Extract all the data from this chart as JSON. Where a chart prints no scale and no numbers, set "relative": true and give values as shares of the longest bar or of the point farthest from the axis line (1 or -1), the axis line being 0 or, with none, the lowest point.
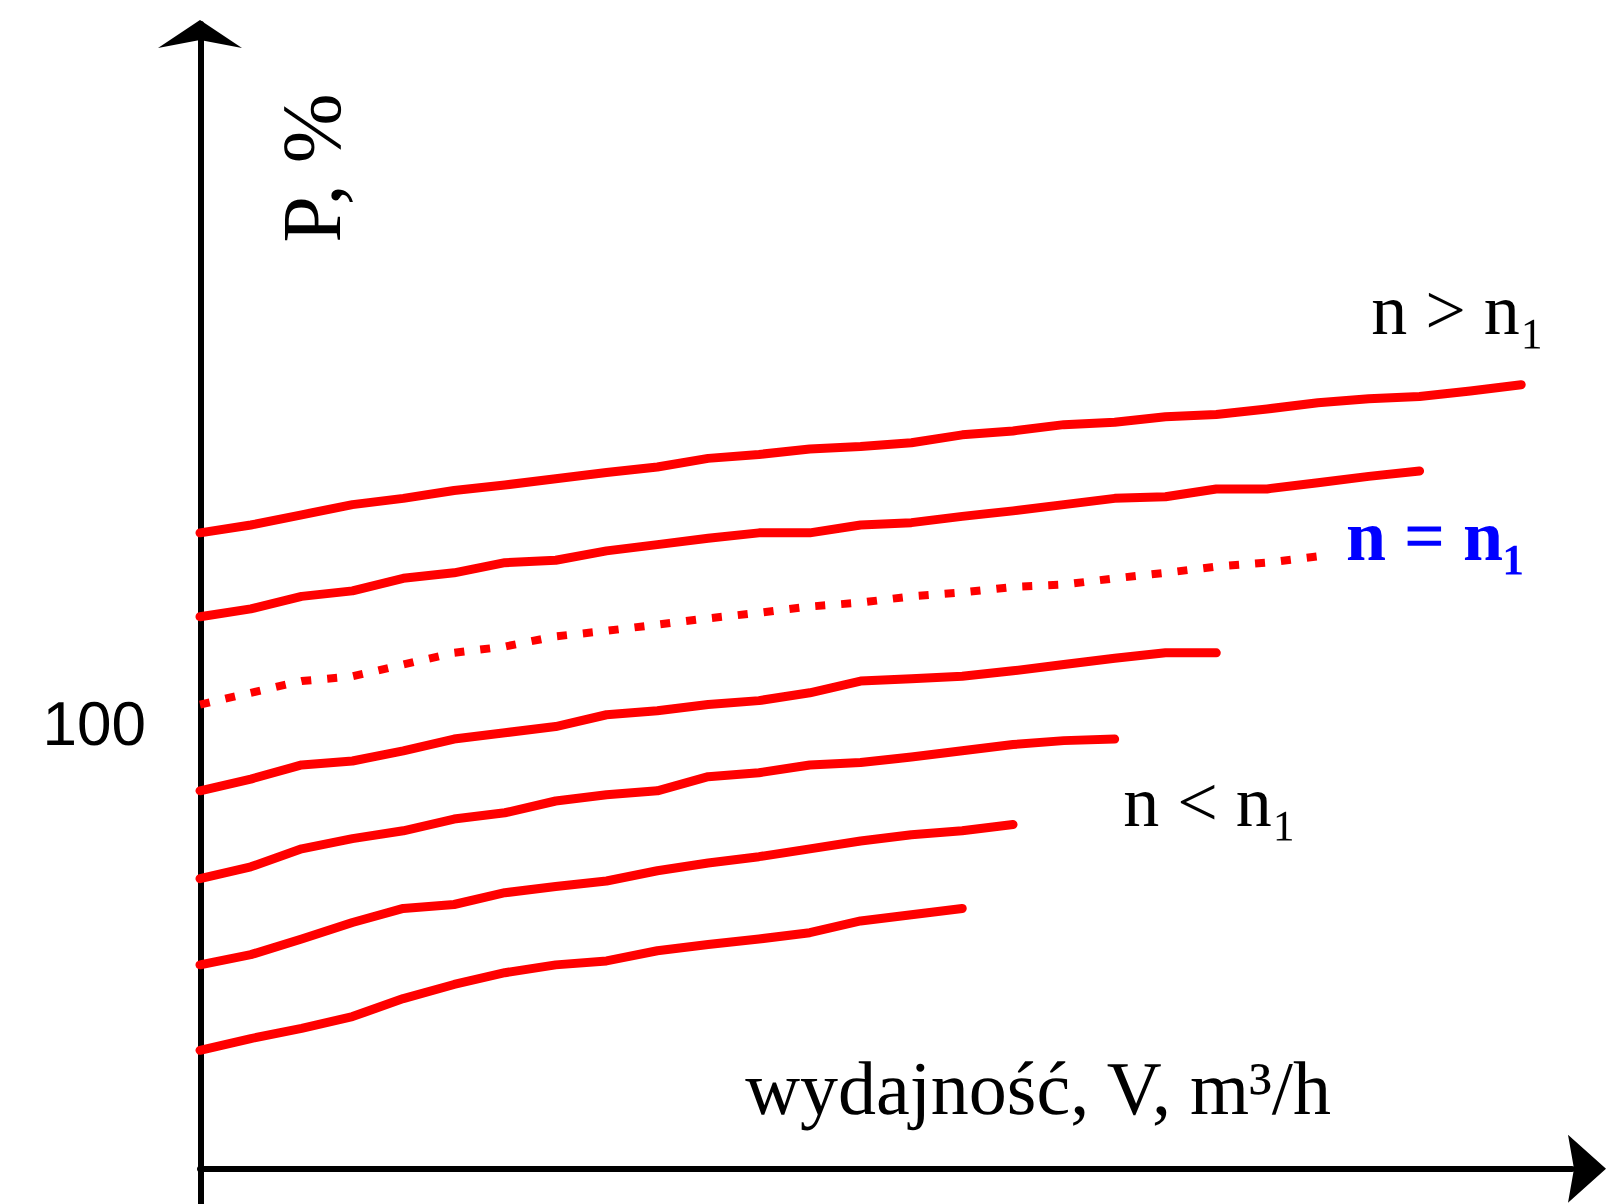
{
  "chart_data": {
    "type": "line",
    "relative": true,
    "xlabel": "wydajność, V, m³/h",
    "ylabel": "P, %",
    "marker": "none",
    "line_style": "solid",
    "categories": [
      null,
      null,
      null,
      null,
      null,
      null,
      null,
      null,
      null,
      null,
      null,
      null,
      null,
      null,
      null,
      null,
      null,
      null,
      null,
      null,
      null,
      null,
      null,
      null,
      null,
      null,
      null,
      null
    ],
    "series": [
      {
        "color": "#ff0000",
        "values": [
          0.811,
          0.821,
          0.834,
          0.847,
          0.855,
          0.865,
          0.872,
          0.88,
          0.888,
          0.895,
          0.906,
          0.911,
          0.918,
          0.921,
          0.926,
          0.936,
          0.941,
          0.949,
          0.952,
          0.959,
          0.962,
          0.969,
          0.977,
          0.982,
          0.985,
          0.992,
          1,
          null
        ]
      },
      {
        "color": "#ff0000",
        "values": [
          0.704,
          0.714,
          0.73,
          0.737,
          0.753,
          0.76,
          0.773,
          0.776,
          0.788,
          0.796,
          0.804,
          0.811,
          0.811,
          0.821,
          0.824,
          0.832,
          0.839,
          0.847,
          0.855,
          0.857,
          0.867,
          0.867,
          0.875,
          0.883,
          0.89,
          null,
          null,
          null
        ]
      },
      {
        "name": "n = n₁",
        "color": "#ff0000",
        "line_style": "dotted",
        "values": [
          0.592,
          0.607,
          0.622,
          0.628,
          0.643,
          0.658,
          0.666,
          0.679,
          0.686,
          0.694,
          0.702,
          0.709,
          0.717,
          0.722,
          0.73,
          0.735,
          0.742,
          0.745,
          0.753,
          0.76,
          0.768,
          0.773,
          0.781,
          null,
          null,
          null,
          null,
          null
        ]
      },
      {
        "color": "#ff0000",
        "values": [
          0.482,
          0.497,
          0.515,
          0.52,
          0.533,
          0.548,
          0.556,
          0.564,
          0.579,
          0.584,
          0.592,
          0.597,
          0.607,
          0.622,
          0.625,
          0.628,
          0.635,
          0.643,
          0.651,
          0.658,
          0.658,
          null,
          null,
          null,
          null,
          null,
          null,
          null
        ]
      },
      {
        "color": "#ff0000",
        "values": [
          0.37,
          0.385,
          0.408,
          0.421,
          0.431,
          0.446,
          0.454,
          0.469,
          0.477,
          0.482,
          0.5,
          0.505,
          0.515,
          0.518,
          0.525,
          0.533,
          0.541,
          0.546,
          0.548,
          null,
          null,
          null,
          null,
          null,
          null,
          null,
          null,
          null
        ]
      },
      {
        "color": "#ff0000",
        "values": [
          0.26,
          0.273,
          0.293,
          0.314,
          0.332,
          0.337,
          0.352,
          0.36,
          0.367,
          0.38,
          0.39,
          0.398,
          0.408,
          0.418,
          0.426,
          0.431,
          0.439,
          null,
          null,
          null,
          null,
          null,
          null,
          null,
          null,
          null,
          null,
          null
        ]
      },
      {
        "color": "#ff0000",
        "values": [
          0.151,
          0.166,
          0.179,
          0.194,
          0.217,
          0.235,
          0.25,
          0.26,
          0.265,
          0.278,
          0.286,
          0.293,
          0.301,
          0.316,
          0.324,
          0.332,
          null,
          null,
          null,
          null,
          null,
          null,
          null,
          null,
          null,
          null,
          null,
          null
        ]
      }
    ],
    "annotations": [
      "n > n₁",
      "n < n₁",
      "100"
    ]
  }
}
